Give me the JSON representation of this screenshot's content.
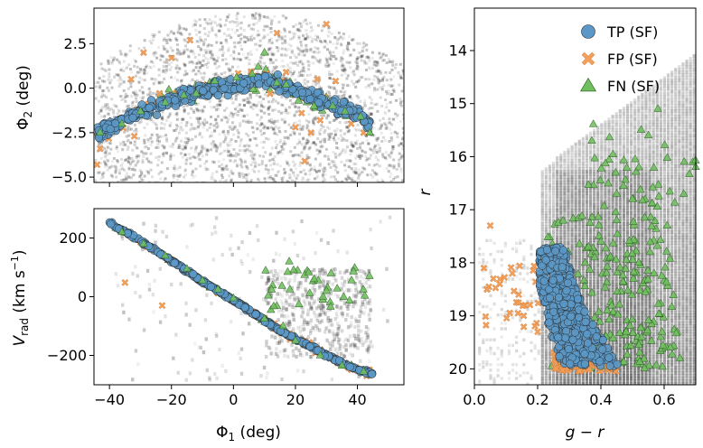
{
  "chart_data": [
    {
      "type": "scatter",
      "panel": "sky",
      "xlim": [
        -45,
        55
      ],
      "ylim": [
        -5.3,
        4.5
      ],
      "xticks": [
        -40,
        -20,
        0,
        20,
        40
      ],
      "yticks": [
        "2.5",
        "0.0",
        "-2.5",
        "-5.0"
      ],
      "ylabel": "Φ₂ (deg)",
      "background": "grey 2D histogram of all stars",
      "series": [
        {
          "name": "TP (SF)",
          "color": "#5b98c7",
          "x": [
            -45,
            -42,
            -38,
            -35,
            -30,
            -25,
            -20,
            -15,
            -10,
            -5,
            0,
            5,
            10,
            15,
            20,
            25,
            30,
            35,
            40,
            43
          ],
          "y": [
            -2.6,
            -2.4,
            -2.0,
            -1.7,
            -1.4,
            -1.0,
            -0.6,
            -0.3,
            -0.1,
            0.1,
            0.1,
            0.3,
            0.4,
            0.2,
            -0.1,
            -0.5,
            -0.8,
            -1.1,
            -1.5,
            -1.9
          ]
        },
        {
          "name": "FP (SF)",
          "color": "#f5a05a",
          "x": [
            -44,
            -43,
            -38,
            -33,
            -32,
            -29,
            -25,
            -23,
            -20,
            -14,
            14,
            17,
            20,
            22,
            23,
            25,
            27,
            28,
            30,
            33,
            38,
            42
          ],
          "y": [
            -4.3,
            -3.4,
            -1.9,
            0.5,
            -2.7,
            2.0,
            -1.5,
            -0.7,
            1.7,
            2.7,
            3.1,
            0.9,
            -2.2,
            -1.4,
            -4.1,
            -2.5,
            0.5,
            -1.8,
            3.6,
            0.4,
            -2.0,
            -2.5
          ]
        },
        {
          "name": "FN (SF)",
          "color": "#6fbf5e",
          "x": [
            -43,
            -36,
            -30,
            -22,
            -16,
            -12,
            -6,
            1,
            6,
            8,
            10,
            14,
            17,
            21,
            26,
            32,
            36,
            41,
            44
          ],
          "y": [
            -2.5,
            -2.0,
            -1.3,
            -0.8,
            -0.4,
            -0.3,
            0.4,
            0.6,
            0.8,
            1.2,
            2.0,
            0.3,
            0.2,
            -0.7,
            -1.0,
            -1.0,
            -1.3,
            -1.6,
            -2.5
          ]
        }
      ]
    },
    {
      "type": "scatter",
      "panel": "velocity",
      "xlim": [
        -45,
        55
      ],
      "ylim": [
        -300,
        300
      ],
      "xticks": [
        -40,
        -20,
        0,
        20,
        40
      ],
      "yticks": [
        200,
        0,
        -200
      ],
      "xlabel": "Φ₁ (deg)",
      "ylabel": "V_rad (km s⁻¹)",
      "background": "grey 2D histogram of all stars",
      "series": [
        {
          "name": "TP (SF)",
          "color": "#5b98c7",
          "x": [
            -40,
            -37,
            -34,
            -30,
            -25,
            -20,
            -15,
            -10,
            -5,
            0,
            5,
            10,
            15,
            20,
            25,
            30,
            35,
            40,
            44
          ],
          "y": [
            253,
            232,
            215,
            190,
            158,
            122,
            88,
            53,
            20,
            -12,
            -45,
            -80,
            -115,
            -143,
            -170,
            -200,
            -225,
            -248,
            -260
          ]
        },
        {
          "name": "FP (SF)",
          "color": "#f5a05a",
          "x": [
            -35,
            -28,
            -20,
            -12,
            -5,
            5,
            12,
            18,
            23,
            28,
            32,
            36,
            40,
            43,
            -23
          ],
          "y": [
            48,
            170,
            120,
            65,
            12,
            -50,
            -100,
            -125,
            -150,
            -180,
            -210,
            -225,
            -250,
            -270,
            -30
          ]
        },
        {
          "name": "FN (SF)",
          "color": "#6fbf5e",
          "x": [
            -36,
            -29,
            -22,
            -15,
            -10,
            -5,
            0,
            10,
            16,
            20,
            28,
            35,
            42,
            26,
            18
          ],
          "y": [
            220,
            180,
            140,
            95,
            55,
            25,
            -5,
            -75,
            -100,
            -150,
            -200,
            -235,
            -255,
            60,
            120
          ]
        }
      ]
    },
    {
      "type": "scatter",
      "panel": "cmd",
      "xlim": [
        0.0,
        0.7
      ],
      "ylim": [
        20.3,
        13.2
      ],
      "xticks": [
        "0.0",
        "0.2",
        "0.4",
        "0.6"
      ],
      "yticks": [
        14,
        15,
        16,
        17,
        18,
        19,
        20
      ],
      "xlabel": "g − r",
      "ylabel": "r",
      "background": "grey 2D histogram of all stars",
      "legend": {
        "position": "top-right",
        "entries": [
          "TP (SF)",
          "FP (SF)",
          "FN (SF)"
        ]
      },
      "series": [
        {
          "name": "TP (SF)",
          "color": "#5b98c7",
          "x": [
            0.22,
            0.21,
            0.22,
            0.23,
            0.24,
            0.25,
            0.26,
            0.28,
            0.3,
            0.33,
            0.36,
            0.25,
            0.29
          ],
          "y": [
            17.7,
            18.2,
            18.7,
            19.0,
            19.3,
            19.5,
            19.7,
            19.9,
            20.0,
            20.0,
            19.9,
            18.4,
            19.1
          ]
        },
        {
          "name": "FP (SF)",
          "color": "#f5a05a",
          "x": [
            0.03,
            0.04,
            0.06,
            0.08,
            0.12,
            0.14,
            0.16,
            0.2,
            0.25,
            0.3,
            0.35,
            0.4,
            0.44,
            0.05
          ],
          "y": [
            18.1,
            18.5,
            18.3,
            18.4,
            18.2,
            18.6,
            18.8,
            19.3,
            19.7,
            20.0,
            20.0,
            20.0,
            20.0,
            17.3
          ]
        },
        {
          "name": "FN (SF)",
          "color": "#6fbf5e",
          "x": [
            0.58,
            0.55,
            0.52,
            0.5,
            0.45,
            0.4,
            0.35,
            0.3,
            0.42,
            0.48,
            0.62,
            0.65,
            0.52,
            0.45,
            0.38
          ],
          "y": [
            15.1,
            15.6,
            16.2,
            16.8,
            17.2,
            17.6,
            18.0,
            18.4,
            18.9,
            19.3,
            19.6,
            19.8,
            18.0,
            16.7,
            17.9
          ]
        }
      ]
    }
  ]
}
